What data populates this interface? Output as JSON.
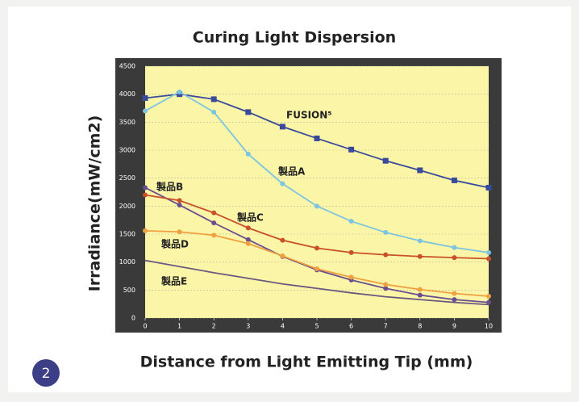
{
  "chart_data": {
    "type": "line",
    "title": "Curing Light Dispersion",
    "x_label": "Distance from Light Emitting Tip (mm)",
    "y_label": "Irradiance(mW/cm2)",
    "badge": "2",
    "x": [
      0,
      1,
      2,
      3,
      4,
      5,
      6,
      7,
      8,
      9,
      10
    ],
    "xlim": [
      0,
      10
    ],
    "xticks": [
      0,
      1,
      2,
      3,
      4,
      5,
      6,
      7,
      8,
      9,
      10
    ],
    "ylim": [
      0,
      4500
    ],
    "yticks": [
      0,
      500,
      1000,
      1500,
      2000,
      2500,
      3000,
      3500,
      4000,
      4500
    ],
    "grid": true,
    "series": [
      {
        "name": "FUSION⁵",
        "color": "#3a4a9a",
        "marker": "square",
        "values": [
          3930,
          4000,
          3910,
          3680,
          3420,
          3210,
          3010,
          2810,
          2640,
          2460,
          2330
        ]
      },
      {
        "name": "製品A",
        "color": "#7cc4e0",
        "marker": "circle",
        "values": [
          3700,
          4040,
          3680,
          2930,
          2400,
          2000,
          1730,
          1530,
          1380,
          1260,
          1170
        ]
      },
      {
        "name": "製品B",
        "color": "#6a4f8e",
        "marker": "circle",
        "values": [
          2330,
          2020,
          1700,
          1400,
          1100,
          860,
          680,
          530,
          410,
          330,
          280
        ]
      },
      {
        "name": "製品C",
        "color": "#c8502a",
        "marker": "circle",
        "values": [
          2200,
          2100,
          1880,
          1610,
          1390,
          1250,
          1170,
          1130,
          1100,
          1080,
          1060
        ]
      },
      {
        "name": "製品D",
        "color": "#f0a040",
        "marker": "circle",
        "values": [
          1560,
          1540,
          1480,
          1330,
          1110,
          880,
          730,
          600,
          510,
          440,
          390
        ]
      },
      {
        "name": "製品E",
        "color": "#6a5a80",
        "marker": "none",
        "values": [
          1030,
          920,
          810,
          710,
          610,
          530,
          450,
          380,
          330,
          280,
          240
        ]
      }
    ]
  }
}
